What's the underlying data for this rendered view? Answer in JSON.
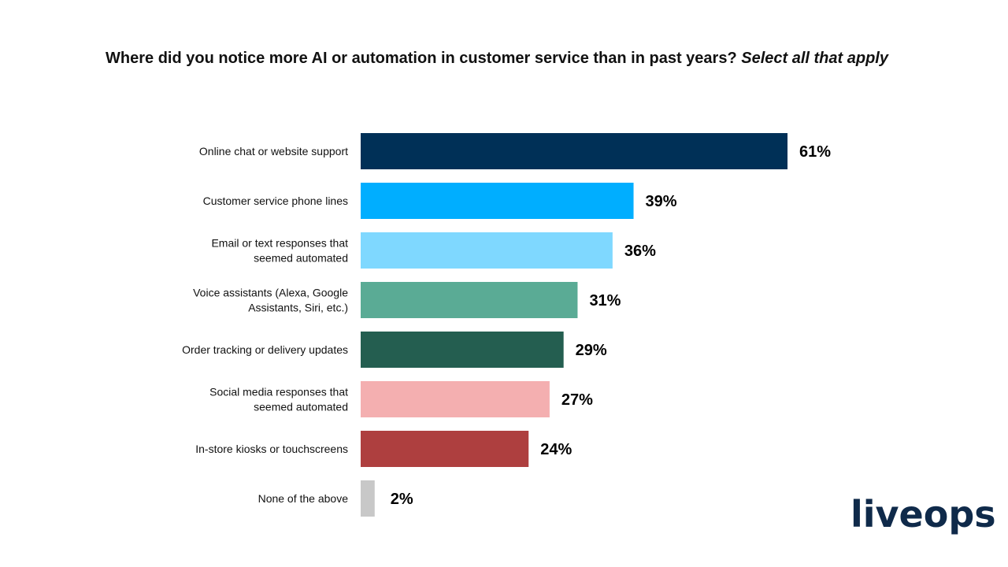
{
  "chart_data": {
    "type": "bar",
    "orientation": "horizontal",
    "title": "Where did you notice more AI or automation in customer service than in past years?",
    "title_note": "Select all that apply",
    "categories": [
      "Online chat or website support",
      "Customer service phone lines",
      "Email or text responses that seemed automated",
      "Voice assistants (Alexa, Google Assistants, Siri, etc.)",
      "Order tracking or delivery updates",
      "Social media responses that seemed automated",
      "In-store kiosks or touchscreens",
      "None of the above"
    ],
    "category_lines": [
      [
        "Online chat or website support"
      ],
      [
        "Customer service phone lines"
      ],
      [
        "Email or text responses that",
        "seemed automated"
      ],
      [
        "Voice assistants (Alexa, Google",
        "Assistants, Siri, etc.)"
      ],
      [
        "Order tracking or delivery updates"
      ],
      [
        "Social media responses that",
        "seemed automated"
      ],
      [
        "In-store kiosks or touchscreens"
      ],
      [
        "None of the above"
      ]
    ],
    "values": [
      61,
      39,
      36,
      31,
      29,
      27,
      24,
      2
    ],
    "value_labels": [
      "61%",
      "39%",
      "36%",
      "31%",
      "29%",
      "27%",
      "24%",
      "2%"
    ],
    "colors": [
      "#003057",
      "#00AEFF",
      "#7FD8FF",
      "#5AAB95",
      "#245E50",
      "#F4AFB0",
      "#AE3F3F",
      "#C8C8C8"
    ],
    "unit": "%",
    "grid": false,
    "legend": "none"
  },
  "logo": "liveops",
  "logo_color": "#0F2A4A"
}
